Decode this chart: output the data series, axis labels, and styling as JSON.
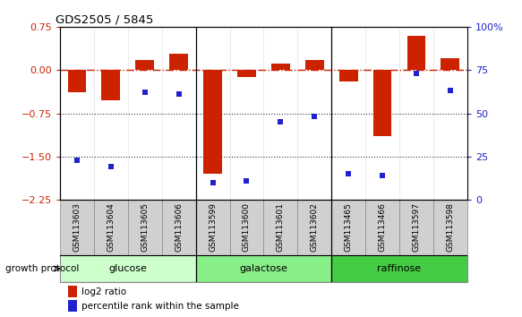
{
  "title": "GDS2505 / 5845",
  "samples": [
    "GSM113603",
    "GSM113604",
    "GSM113605",
    "GSM113606",
    "GSM113599",
    "GSM113600",
    "GSM113601",
    "GSM113602",
    "GSM113465",
    "GSM113466",
    "GSM113597",
    "GSM113598"
  ],
  "log2_ratio": [
    -0.38,
    -0.52,
    0.18,
    0.28,
    -1.8,
    -0.12,
    0.12,
    0.18,
    -0.2,
    -1.15,
    0.6,
    0.2
  ],
  "percentile_rank": [
    23,
    19,
    62,
    61,
    10,
    11,
    45,
    48,
    15,
    14,
    73,
    63
  ],
  "group_info": [
    {
      "label": "glucose",
      "start": 0,
      "end": 3,
      "color": "#ccffcc"
    },
    {
      "label": "galactose",
      "start": 4,
      "end": 7,
      "color": "#88ee88"
    },
    {
      "label": "raffinose",
      "start": 8,
      "end": 11,
      "color": "#44cc44"
    }
  ],
  "ylim_left": [
    -2.25,
    0.75
  ],
  "ylim_right": [
    0,
    100
  ],
  "yticks_left": [
    0.75,
    0,
    -0.75,
    -1.5,
    -2.25
  ],
  "yticks_right": [
    100,
    75,
    50,
    25,
    0
  ],
  "bar_color": "#cc2200",
  "dot_color": "#2222cc",
  "zero_line_color": "#cc2200",
  "dotted_line_color": "#333333",
  "bar_width": 0.55,
  "group_boundaries": [
    3.5,
    7.5
  ]
}
